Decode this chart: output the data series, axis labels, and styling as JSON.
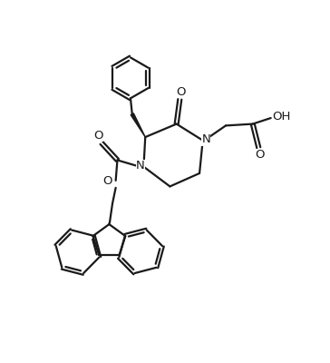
{
  "background": "#ffffff",
  "line_color": "#1a1a1a",
  "line_width": 1.6,
  "fig_width": 3.64,
  "fig_height": 4.0,
  "dpi": 100,
  "xlim": [
    0,
    10
  ],
  "ylim": [
    0,
    11
  ]
}
